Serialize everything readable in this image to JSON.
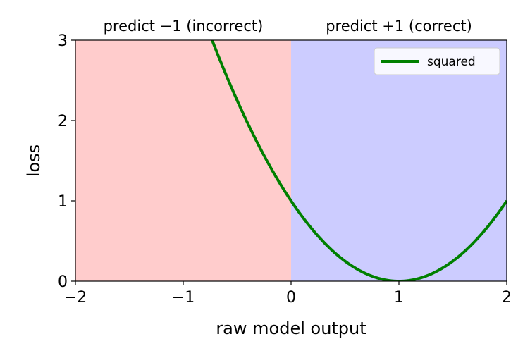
{
  "chart_data": {
    "type": "line",
    "title": "",
    "xlabel": "raw model output",
    "ylabel": "loss",
    "xlim": [
      -2,
      2
    ],
    "ylim": [
      0,
      3
    ],
    "x_ticks": [
      -2,
      -1,
      0,
      1,
      2
    ],
    "x_tick_labels": [
      "−2",
      "−1",
      "0",
      "1",
      "2"
    ],
    "y_ticks": [
      0,
      1,
      2,
      3
    ],
    "y_tick_labels": [
      "0",
      "1",
      "2",
      "3"
    ],
    "grid": false,
    "legend_position": "top-right",
    "regions": [
      {
        "label": "predict −1 (incorrect)",
        "x_range": [
          -2,
          0
        ],
        "color": "#ffcccc"
      },
      {
        "label": "predict +1 (correct)",
        "x_range": [
          0,
          2
        ],
        "color": "#ccccff"
      }
    ],
    "series": [
      {
        "name": "squared",
        "color": "#008000",
        "function": "(x - 1)^2",
        "x": [
          -0.75,
          -0.5,
          -0.25,
          0,
          0.25,
          0.5,
          0.75,
          1,
          1.25,
          1.5,
          1.75,
          2
        ],
        "y": [
          3.0625,
          2.25,
          1.5625,
          1,
          0.5625,
          0.25,
          0.0625,
          0,
          0.0625,
          0.25,
          0.5625,
          1
        ]
      }
    ]
  }
}
